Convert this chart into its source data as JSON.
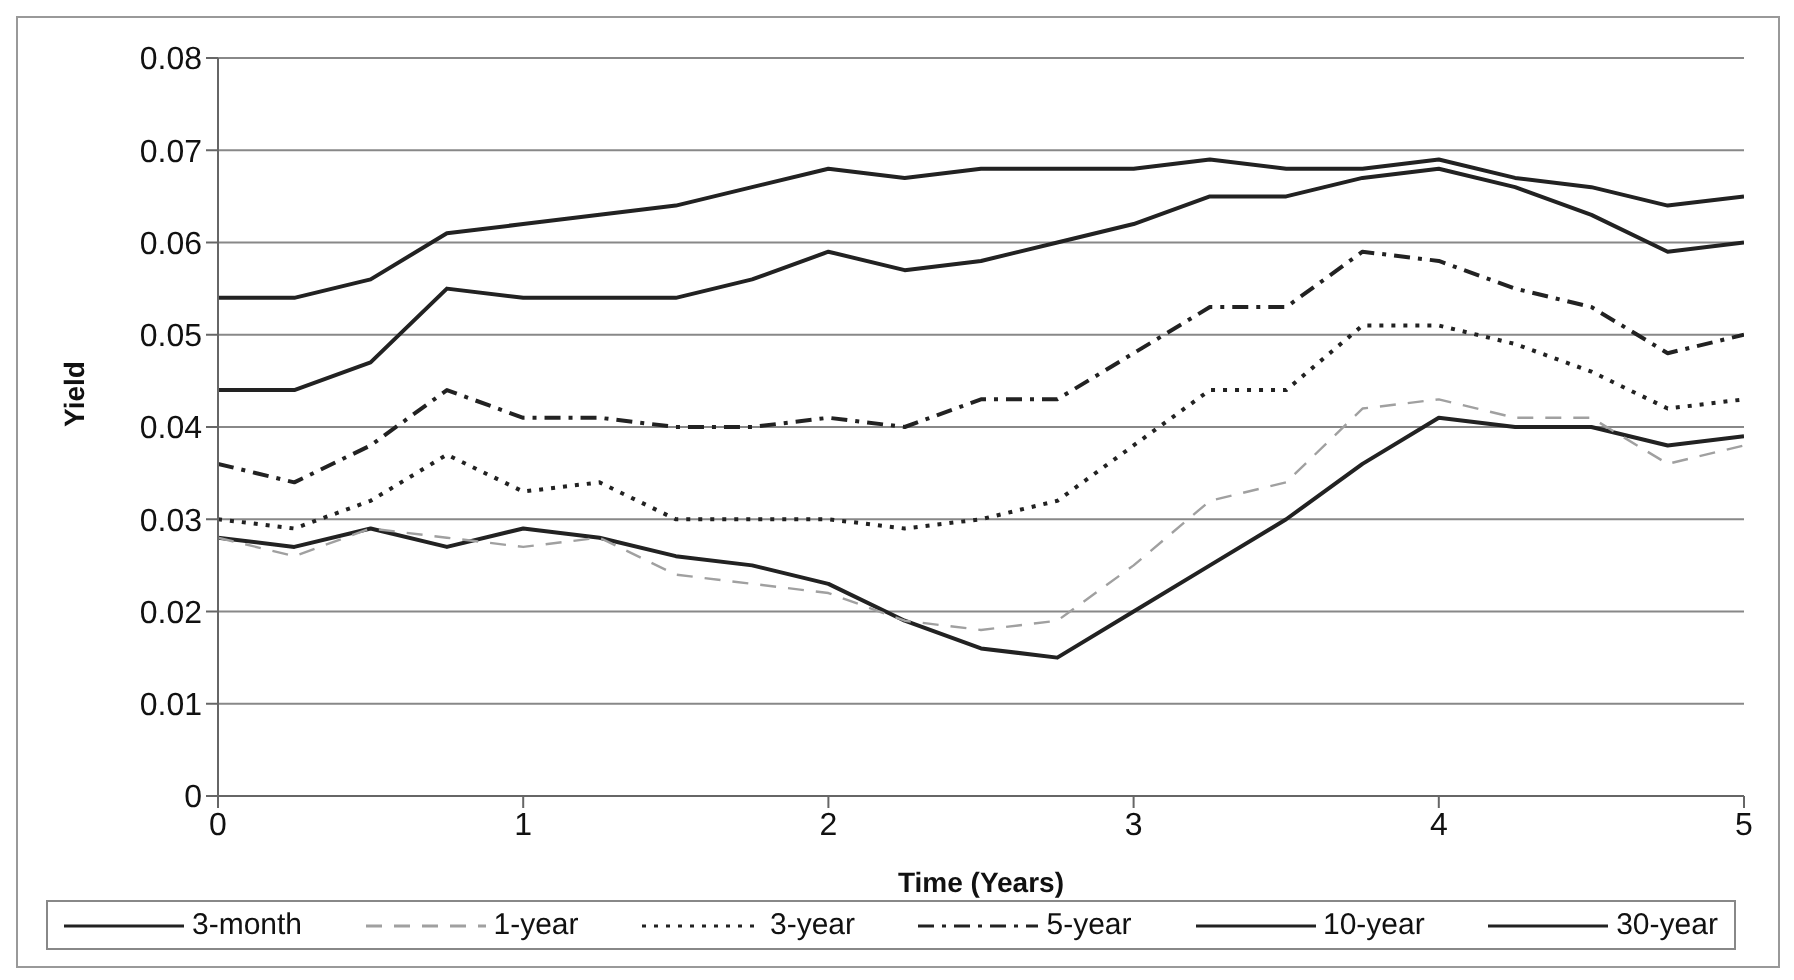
{
  "chart_data": {
    "type": "line",
    "xlabel": "Time (Years)",
    "ylabel": "Yield",
    "x": [
      0,
      0.25,
      0.5,
      0.75,
      1,
      1.25,
      1.5,
      1.75,
      2,
      2.25,
      2.5,
      2.75,
      3,
      3.25,
      3.5,
      3.75,
      4,
      4.25,
      4.5,
      4.75,
      5
    ],
    "xlim": [
      0,
      5
    ],
    "xticks": [
      0,
      1,
      2,
      3,
      4,
      5
    ],
    "ylim": [
      0,
      0.08
    ],
    "yticks": [
      0,
      0.01,
      0.02,
      0.03,
      0.04,
      0.05,
      0.06,
      0.07,
      0.08
    ],
    "grid": "y",
    "legend": "bottom",
    "marker": "none",
    "series": [
      {
        "name": "3-month",
        "color": "#222222",
        "line_style": "solid",
        "values": [
          0.028,
          0.027,
          0.029,
          0.027,
          0.029,
          0.028,
          0.026,
          0.025,
          0.023,
          0.019,
          0.016,
          0.015,
          0.02,
          0.025,
          0.03,
          0.036,
          0.041,
          0.04,
          0.04,
          0.038,
          0.039
        ]
      },
      {
        "name": "1-year",
        "color": "#a0a0a0",
        "line_style": "dashed",
        "values": [
          0.028,
          0.026,
          0.029,
          0.028,
          0.027,
          0.028,
          0.024,
          0.023,
          0.022,
          0.019,
          0.018,
          0.019,
          0.025,
          0.032,
          0.034,
          0.042,
          0.043,
          0.041,
          0.041,
          0.036,
          0.038
        ]
      },
      {
        "name": "3-year",
        "color": "#222222",
        "line_style": "dotted",
        "values": [
          0.03,
          0.029,
          0.032,
          0.037,
          0.033,
          0.034,
          0.03,
          0.03,
          0.03,
          0.029,
          0.03,
          0.032,
          0.038,
          0.044,
          0.044,
          0.051,
          0.051,
          0.049,
          0.046,
          0.042,
          0.043
        ]
      },
      {
        "name": "5-year",
        "color": "#222222",
        "line_style": "dashdot",
        "values": [
          0.036,
          0.034,
          0.038,
          0.044,
          0.041,
          0.041,
          0.04,
          0.04,
          0.041,
          0.04,
          0.043,
          0.043,
          0.048,
          0.053,
          0.053,
          0.059,
          0.058,
          0.055,
          0.053,
          0.048,
          0.05
        ]
      },
      {
        "name": "10-year",
        "color": "#222222",
        "line_style": "solid",
        "values": [
          0.044,
          0.044,
          0.047,
          0.055,
          0.054,
          0.054,
          0.054,
          0.056,
          0.059,
          0.057,
          0.058,
          0.06,
          0.062,
          0.065,
          0.065,
          0.067,
          0.068,
          0.066,
          0.063,
          0.059,
          0.06
        ]
      },
      {
        "name": "30-year",
        "color": "#222222",
        "line_style": "solid",
        "values": [
          0.054,
          0.054,
          0.056,
          0.061,
          0.062,
          0.063,
          0.064,
          0.066,
          0.068,
          0.067,
          0.068,
          0.068,
          0.068,
          0.069,
          0.068,
          0.068,
          0.069,
          0.067,
          0.066,
          0.064,
          0.065
        ]
      }
    ]
  }
}
